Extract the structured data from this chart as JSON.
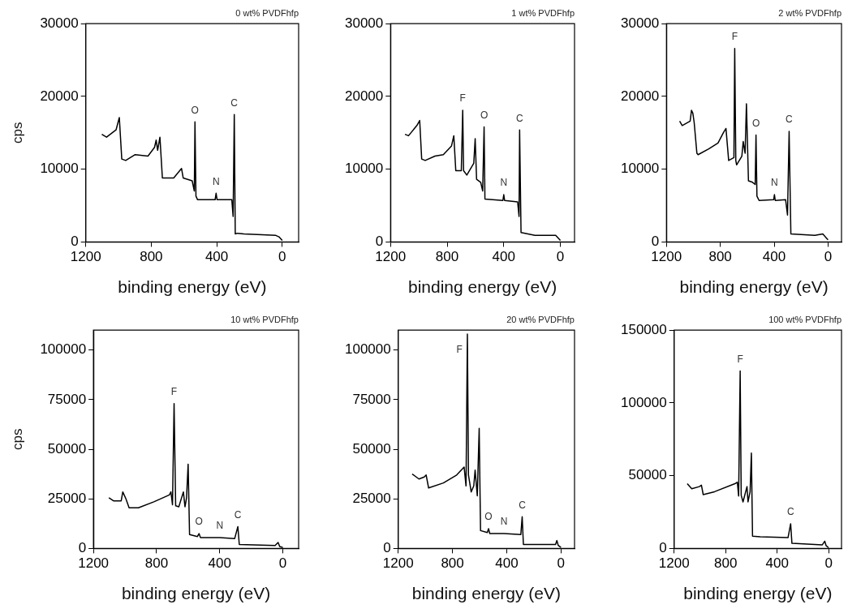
{
  "chart_data": [
    {
      "type": "line",
      "title": "0 wt% PVDFhfp",
      "xlabel": "binding energy (eV)",
      "ylabel": "cps",
      "color": "#000000",
      "xlim": [
        1200,
        -100
      ],
      "xticks": [
        1200,
        800,
        400,
        0
      ],
      "ylim": [
        0,
        30000
      ],
      "yticks": [
        0,
        10000,
        20000,
        30000
      ],
      "x": [
        1102,
        1073,
        1015,
        995,
        980,
        956,
        898,
        820,
        780,
        770,
        761,
        747,
        732,
        663,
        615,
        605,
        550,
        537,
        533,
        527,
        517,
        410,
        404,
        398,
        308,
        300,
        293,
        287,
        273,
        234,
        39,
        20,
        0
      ],
      "values": [
        14800,
        14400,
        15400,
        17100,
        11400,
        11200,
        12000,
        11800,
        13000,
        14000,
        12600,
        14400,
        8800,
        8800,
        10100,
        8800,
        8400,
        7000,
        16500,
        6300,
        5800,
        5800,
        6700,
        5800,
        5800,
        3500,
        17500,
        1100,
        1200,
        1100,
        900,
        700,
        200
      ],
      "annotations": [
        {
          "text": "O",
          "x": 533,
          "y": 16500
        },
        {
          "text": "N",
          "x": 404,
          "y": 6700
        },
        {
          "text": "C",
          "x": 293,
          "y": 17500
        }
      ]
    },
    {
      "type": "line",
      "title": "1 wt% PVDFhfp",
      "xlabel": "binding energy (eV)",
      "color": "#000000",
      "xlim": [
        1200,
        -100
      ],
      "xticks": [
        1200,
        800,
        400,
        0
      ],
      "ylim": [
        0,
        30000
      ],
      "yticks": [
        0,
        10000,
        20000,
        30000
      ],
      "x": [
        1098,
        1073,
        1014,
        994,
        980,
        955,
        886,
        827,
        769,
        753,
        739,
        700,
        690,
        684,
        661,
        612,
        602,
        592,
        563,
        549,
        539,
        533,
        406,
        400,
        394,
        302,
        292,
        288,
        278,
        180,
        33,
        0
      ],
      "values": [
        14800,
        14600,
        16000,
        16700,
        11400,
        11200,
        11800,
        12000,
        13200,
        14600,
        9800,
        9800,
        18100,
        9800,
        9200,
        10800,
        14200,
        8600,
        8200,
        7000,
        15800,
        5900,
        5700,
        6500,
        5700,
        5500,
        3500,
        15400,
        1300,
        900,
        900,
        200
      ],
      "annotations": [
        {
          "text": "F",
          "x": 690,
          "y": 18100
        },
        {
          "text": "O",
          "x": 539,
          "y": 15800
        },
        {
          "text": "N",
          "x": 400,
          "y": 6500
        },
        {
          "text": "C",
          "x": 288,
          "y": 15400
        }
      ]
    },
    {
      "type": "line",
      "title": "2 wt% PVDFhfp",
      "xlabel": "binding energy (eV)",
      "color": "#000000",
      "xlim": [
        1200,
        -100
      ],
      "xticks": [
        1200,
        800,
        400,
        0
      ],
      "ylim": [
        0,
        30000
      ],
      "yticks": [
        0,
        10000,
        20000,
        30000
      ],
      "x": [
        1102,
        1083,
        1024,
        1014,
        1004,
        994,
        974,
        965,
        886,
        817,
        778,
        758,
        738,
        699,
        693,
        685,
        679,
        640,
        630,
        616,
        606,
        591,
        561,
        541,
        535,
        528,
        512,
        404,
        398,
        392,
        315,
        301,
        289,
        276,
        98,
        39,
        10,
        0
      ],
      "values": [
        16600,
        16000,
        16600,
        18100,
        17700,
        16400,
        12200,
        12000,
        12800,
        13600,
        15000,
        15600,
        11200,
        11600,
        26600,
        11200,
        10600,
        11800,
        13800,
        12200,
        19000,
        8400,
        8200,
        7900,
        14700,
        6300,
        5700,
        5800,
        6500,
        5700,
        5800,
        3700,
        15200,
        1100,
        900,
        1100,
        500,
        300
      ],
      "annotations": [
        {
          "text": "F",
          "x": 693,
          "y": 26600
        },
        {
          "text": "O",
          "x": 535,
          "y": 14700
        },
        {
          "text": "N",
          "x": 398,
          "y": 6500
        },
        {
          "text": "C",
          "x": 289,
          "y": 15200
        }
      ]
    },
    {
      "type": "line",
      "title": "10 wt% PVDFhfp",
      "xlabel": "binding energy (eV)",
      "ylabel": "cps",
      "color": "#000000",
      "xlim": [
        1200,
        -100
      ],
      "xticks": [
        1200,
        800,
        400,
        0
      ],
      "ylim": [
        0,
        110000
      ],
      "yticks": [
        0,
        25000,
        50000,
        75000,
        100000
      ],
      "x": [
        1102,
        1073,
        1024,
        1014,
        994,
        974,
        915,
        817,
        719,
        709,
        699,
        689,
        679,
        659,
        630,
        620,
        610,
        600,
        591,
        541,
        531,
        522,
        400,
        305,
        285,
        276,
        49,
        30,
        20,
        0
      ],
      "values": [
        25500,
        24000,
        24000,
        28500,
        25000,
        20500,
        20500,
        23500,
        27000,
        28500,
        22000,
        73000,
        21500,
        21000,
        28500,
        21000,
        25500,
        42500,
        7000,
        6000,
        7500,
        5500,
        5500,
        5000,
        11000,
        2000,
        1500,
        3000,
        1000,
        500
      ],
      "annotations": [
        {
          "text": "F",
          "x": 689,
          "y": 73000
        },
        {
          "text": "O",
          "x": 531,
          "y": 7500
        },
        {
          "text": "N",
          "x": 400,
          "y": 5500
        },
        {
          "text": "C",
          "x": 285,
          "y": 11000
        }
      ]
    },
    {
      "type": "line",
      "title": "20 wt% PVDFhfp",
      "xlabel": "binding energy (eV)",
      "color": "#000000",
      "xlim": [
        1200,
        -100
      ],
      "xticks": [
        1200,
        800,
        400,
        0
      ],
      "ylim": [
        0,
        110000
      ],
      "yticks": [
        0,
        25000,
        50000,
        75000,
        100000
      ],
      "x": [
        1097,
        1047,
        1008,
        994,
        976,
        867,
        769,
        714,
        700,
        690,
        682,
        662,
        643,
        633,
        617,
        603,
        593,
        543,
        534,
        525,
        420,
        296,
        286,
        277,
        40,
        30,
        20,
        0
      ],
      "values": [
        37500,
        35000,
        36000,
        37000,
        30500,
        33000,
        37000,
        41000,
        31500,
        108000,
        37000,
        28500,
        31500,
        39500,
        26500,
        60500,
        9000,
        8000,
        10000,
        7500,
        7500,
        7000,
        16000,
        2000,
        2000,
        4000,
        1500,
        500
      ],
      "annotations": [
        {
          "text": "F",
          "x": 690,
          "y": 108000
        },
        {
          "text": "O",
          "x": 534,
          "y": 10000
        },
        {
          "text": "N",
          "x": 420,
          "y": 7500
        },
        {
          "text": "C",
          "x": 286,
          "y": 16000
        }
      ]
    },
    {
      "type": "line",
      "title": "100 wt% PVDFhfp",
      "xlabel": "binding energy (eV)",
      "color": "#000000",
      "xlim": [
        1200,
        -100
      ],
      "xticks": [
        1200,
        800,
        400,
        0
      ],
      "ylim": [
        0,
        150000
      ],
      "yticks": [
        0,
        50000,
        100000,
        150000
      ],
      "x": [
        1098,
        1063,
        1004,
        988,
        974,
        886,
        728,
        709,
        699,
        687,
        679,
        665,
        634,
        626,
        610,
        600,
        591,
        531,
        315,
        295,
        285,
        49,
        30,
        20,
        0
      ],
      "values": [
        44500,
        41000,
        42500,
        43500,
        37000,
        39000,
        44500,
        45500,
        36000,
        122000,
        36500,
        32000,
        42500,
        32000,
        39000,
        65500,
        8500,
        8000,
        7500,
        17000,
        3500,
        2500,
        5000,
        2000,
        500
      ],
      "annotations": [
        {
          "text": "F",
          "x": 687,
          "y": 122000
        },
        {
          "text": "C",
          "x": 295,
          "y": 17000
        }
      ]
    }
  ]
}
